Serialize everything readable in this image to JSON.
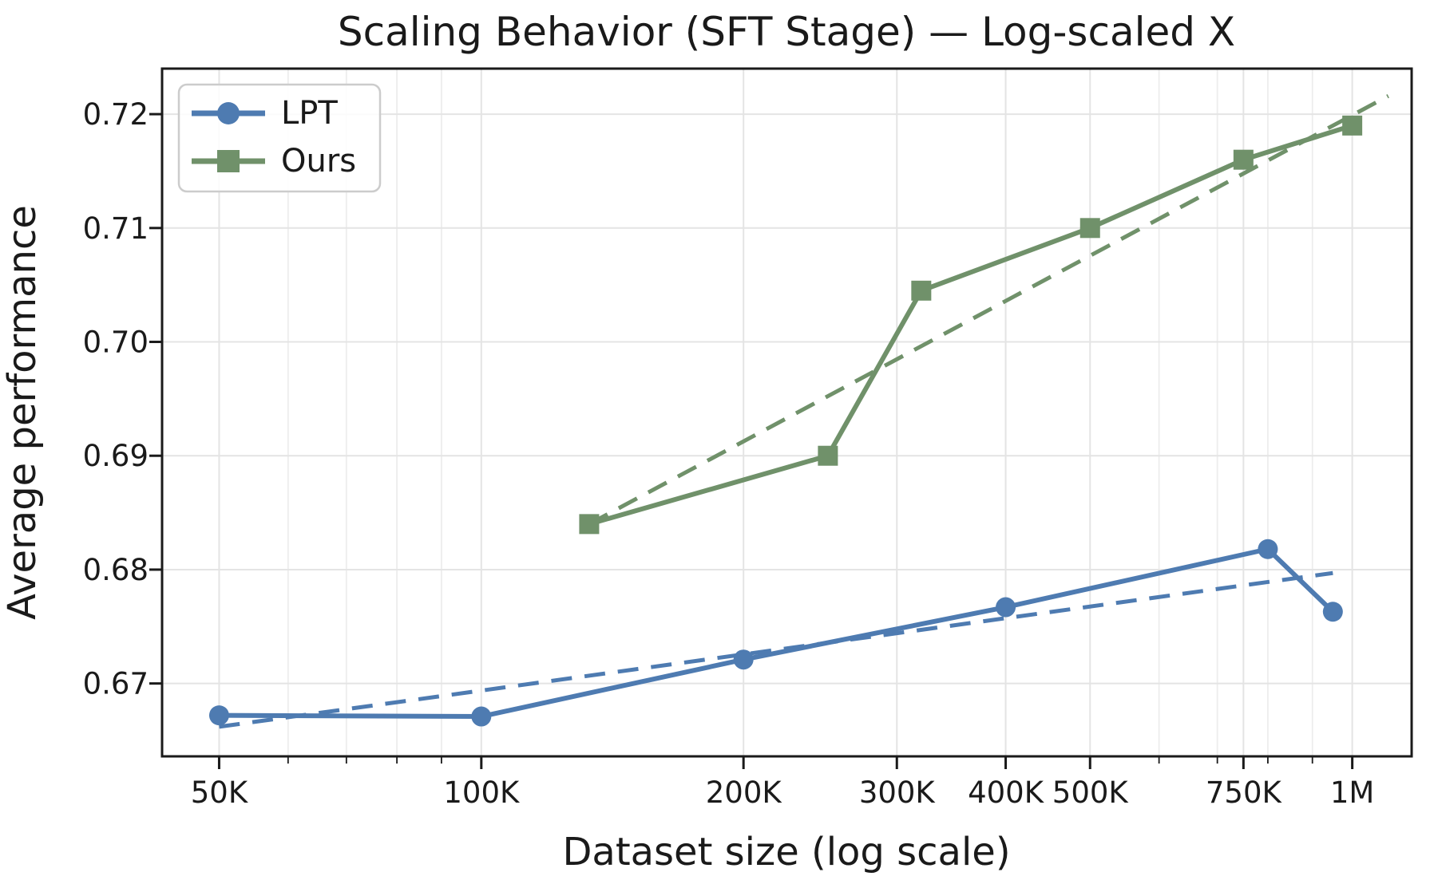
{
  "chart_data": {
    "type": "line",
    "title": "Scaling Behavior (SFT Stage) — Log-scaled X",
    "xlabel": "Dataset size (log scale)",
    "ylabel": "Average performance",
    "x_scale": "log",
    "grid": true,
    "legend_position": "upper left",
    "xlim": [
      43000,
      1170000
    ],
    "ylim": [
      0.6636,
      0.724
    ],
    "x_major_ticks": [
      50000,
      100000,
      200000,
      300000,
      400000,
      500000,
      750000,
      1000000
    ],
    "x_major_labels": [
      "50K",
      "100K",
      "200K",
      "300K",
      "400K",
      "500K",
      "750K",
      "1M"
    ],
    "x_minor_ticks": [
      60000,
      70000,
      80000,
      90000,
      600000,
      700000,
      800000,
      900000
    ],
    "y_ticks": [
      0.67,
      0.68,
      0.69,
      0.7,
      0.71,
      0.72
    ],
    "y_tick_labels": [
      "0.67",
      "0.68",
      "0.69",
      "0.70",
      "0.71",
      "0.72"
    ],
    "series": [
      {
        "name": "LPT",
        "color": "#4e7bb1",
        "marker": "circle",
        "x": [
          50000,
          100000,
          200000,
          400000,
          800000,
          950000
        ],
        "y": [
          0.6672,
          0.6671,
          0.6721,
          0.6767,
          0.6818,
          0.6763
        ]
      },
      {
        "name": "Ours",
        "color": "#70916a",
        "marker": "square",
        "x": [
          133000,
          250000,
          320000,
          500000,
          750000,
          1000000
        ],
        "y": [
          0.684,
          0.69,
          0.7045,
          0.71,
          0.716,
          0.719
        ]
      }
    ],
    "trendlines": [
      {
        "series": "LPT",
        "style": "dashed",
        "color": "#4e7bb1",
        "x": [
          50000,
          950000
        ],
        "y": [
          0.6662,
          0.6797
        ]
      },
      {
        "series": "Ours",
        "style": "dashed",
        "color": "#70916a",
        "x": [
          133000,
          1100000
        ],
        "y": [
          0.684,
          0.7216
        ]
      }
    ]
  },
  "legend": {
    "items": [
      {
        "label": "LPT"
      },
      {
        "label": "Ours"
      }
    ]
  }
}
